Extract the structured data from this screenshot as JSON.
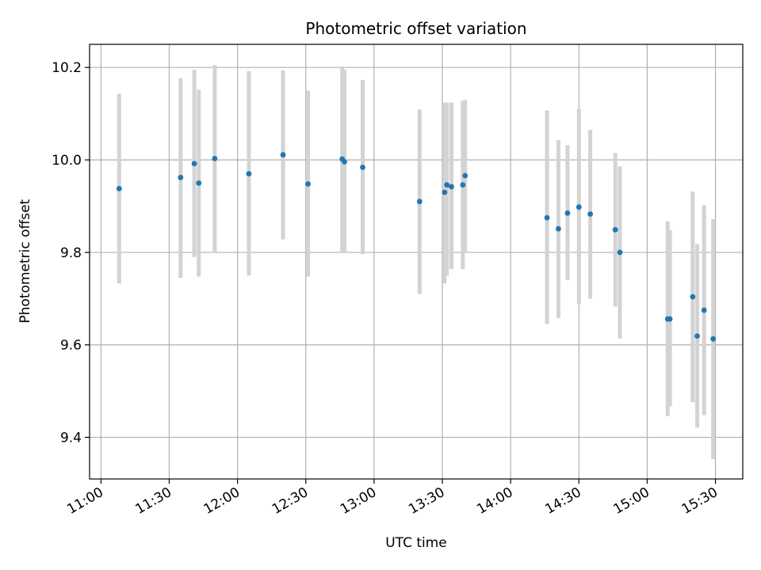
{
  "chart_data": {
    "type": "scatter",
    "title": "Photometric offset variation",
    "xlabel": "UTC time",
    "ylabel": "Photometric offset",
    "xlim": [
      "10:55",
      "15:42"
    ],
    "ylim": [
      9.31,
      10.25
    ],
    "grid": true,
    "x_ticks": [
      "11:00",
      "11:30",
      "12:00",
      "12:30",
      "13:00",
      "13:30",
      "14:00",
      "14:30",
      "15:00",
      "15:30"
    ],
    "y_ticks": [
      "9.4",
      "9.6",
      "9.8",
      "10.0",
      "10.2"
    ],
    "point_color": "#1f77b4",
    "errorbar_color": "#d3d3d3",
    "series": [
      {
        "points": [
          {
            "t": "11:08",
            "y": 9.938,
            "lo": 9.733,
            "hi": 10.143
          },
          {
            "t": "11:35",
            "y": 9.962,
            "lo": 9.745,
            "hi": 10.177
          },
          {
            "t": "11:41",
            "y": 9.992,
            "lo": 9.79,
            "hi": 10.195
          },
          {
            "t": "11:43",
            "y": 9.95,
            "lo": 9.748,
            "hi": 10.152
          },
          {
            "t": "11:50",
            "y": 10.003,
            "lo": 9.8,
            "hi": 10.205
          },
          {
            "t": "12:05",
            "y": 9.97,
            "lo": 9.75,
            "hi": 10.192
          },
          {
            "t": "12:20",
            "y": 10.011,
            "lo": 9.828,
            "hi": 10.194
          },
          {
            "t": "12:31",
            "y": 9.948,
            "lo": 9.748,
            "hi": 10.15
          },
          {
            "t": "12:46",
            "y": 10.002,
            "lo": 9.8,
            "hi": 10.2
          },
          {
            "t": "12:47",
            "y": 9.996,
            "lo": 9.8,
            "hi": 10.195
          },
          {
            "t": "12:55",
            "y": 9.984,
            "lo": 9.796,
            "hi": 10.173
          },
          {
            "t": "13:20",
            "y": 9.91,
            "lo": 9.71,
            "hi": 10.109
          },
          {
            "t": "13:31",
            "y": 9.93,
            "lo": 9.733,
            "hi": 10.124
          },
          {
            "t": "13:32",
            "y": 9.946,
            "lo": 9.75,
            "hi": 10.124
          },
          {
            "t": "13:34",
            "y": 9.942,
            "lo": 9.764,
            "hi": 10.124
          },
          {
            "t": "13:39",
            "y": 9.946,
            "lo": 9.764,
            "hi": 10.128
          },
          {
            "t": "13:40",
            "y": 9.966,
            "lo": 9.8,
            "hi": 10.13
          },
          {
            "t": "14:16",
            "y": 9.875,
            "lo": 9.645,
            "hi": 10.107
          },
          {
            "t": "14:21",
            "y": 9.851,
            "lo": 9.658,
            "hi": 10.043
          },
          {
            "t": "14:25",
            "y": 9.885,
            "lo": 9.74,
            "hi": 10.032
          },
          {
            "t": "14:30",
            "y": 9.898,
            "lo": 9.688,
            "hi": 10.11
          },
          {
            "t": "14:35",
            "y": 9.883,
            "lo": 9.7,
            "hi": 10.065
          },
          {
            "t": "14:46",
            "y": 9.849,
            "lo": 9.683,
            "hi": 10.015
          },
          {
            "t": "14:48",
            "y": 9.8,
            "lo": 9.614,
            "hi": 9.986
          },
          {
            "t": "15:09",
            "y": 9.656,
            "lo": 9.446,
            "hi": 9.867
          },
          {
            "t": "15:10",
            "y": 9.656,
            "lo": 9.467,
            "hi": 9.848
          },
          {
            "t": "15:20",
            "y": 9.704,
            "lo": 9.476,
            "hi": 9.932
          },
          {
            "t": "15:22",
            "y": 9.619,
            "lo": 9.421,
            "hi": 9.818
          },
          {
            "t": "15:25",
            "y": 9.675,
            "lo": 9.448,
            "hi": 9.902
          },
          {
            "t": "15:29",
            "y": 9.613,
            "lo": 9.353,
            "hi": 9.872
          }
        ]
      }
    ]
  }
}
